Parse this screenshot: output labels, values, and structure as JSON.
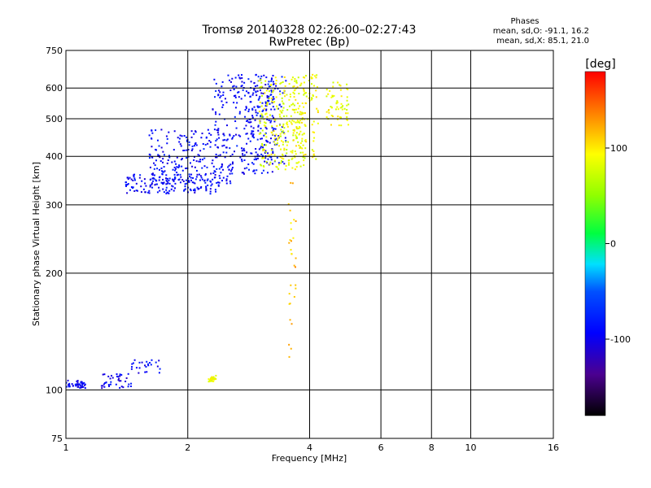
{
  "header": {
    "title_line1": "Tromsø 20140328 02:26:00–02:27:43",
    "title_line2": "RwPretec (Bp)",
    "stats_title": "Phases",
    "stats_o": "mean, sd,O: -91.1, 16.2",
    "stats_x": "mean, sd,X:  85.1, 21.0"
  },
  "colorbar": {
    "unit": "[deg]",
    "ticks": [
      {
        "value": 100,
        "label": "100"
      },
      {
        "value": 0,
        "label": "0"
      },
      {
        "value": -100,
        "label": "-100"
      }
    ],
    "range": [
      -180,
      180
    ]
  },
  "chart_data": {
    "type": "scatter",
    "title": "Tromsø 20140328 02:26:00–02:27:43",
    "subtitle": "RwPretec (Bp)",
    "xlabel": "Frequency [MHz]",
    "ylabel": "Stationary phase Virtual Height [km]",
    "x_scale": "log",
    "y_scale": "log",
    "xlim": [
      1,
      16
    ],
    "ylim": [
      75,
      750
    ],
    "x_ticks": [
      1,
      2,
      4,
      6,
      8,
      10,
      16
    ],
    "y_ticks": [
      75,
      100,
      200,
      300,
      400,
      500,
      600,
      750
    ],
    "x_gridlines": [
      2,
      4,
      6,
      8,
      10
    ],
    "y_gridlines": [
      100,
      200,
      300,
      400,
      500,
      600
    ],
    "color_variable": "phase [deg]",
    "color_range": [
      -180,
      180
    ],
    "clusters": [
      {
        "desc": "E-region trace (O-mode)",
        "x": [
          1.0,
          1.12
        ],
        "y": [
          101,
          106
        ],
        "phase": -95,
        "n": 45
      },
      {
        "desc": "E-region trace (O-mode)",
        "x": [
          1.22,
          1.45
        ],
        "y": [
          101,
          110
        ],
        "phase": -98,
        "n": 40
      },
      {
        "desc": "Es segment",
        "x": [
          1.45,
          1.72
        ],
        "y": [
          110,
          120
        ],
        "phase": -92,
        "n": 25
      },
      {
        "desc": "F-region trace lower branch (O-mode)",
        "x": [
          1.4,
          2.4
        ],
        "y": [
          320,
          360
        ],
        "phase": -92,
        "n": 160
      },
      {
        "desc": "F-region trace (O-mode)",
        "x": [
          1.6,
          2.6
        ],
        "y": [
          340,
          470
        ],
        "phase": -90,
        "n": 220
      },
      {
        "desc": "F-region trace (O-mode)",
        "x": [
          2.3,
          3.3
        ],
        "y": [
          360,
          650
        ],
        "phase": -90,
        "n": 240
      },
      {
        "desc": "F-region trace (O-mode)",
        "x": [
          2.8,
          3.5
        ],
        "y": [
          380,
          650
        ],
        "phase": -88,
        "n": 120
      },
      {
        "desc": "F-region trace (X-mode)",
        "x": [
          3.0,
          3.9
        ],
        "y": [
          370,
          640
        ],
        "phase": 85,
        "n": 260
      },
      {
        "desc": "F-region trace (X-mode)",
        "x": [
          3.6,
          4.2
        ],
        "y": [
          390,
          650
        ],
        "phase": 90,
        "n": 90
      },
      {
        "desc": "F-region trace (X-mode)",
        "x": [
          4.4,
          5.0
        ],
        "y": [
          480,
          620
        ],
        "phase": 88,
        "n": 60
      },
      {
        "desc": "oblique echoes near 3.6 MHz",
        "x": [
          3.55,
          3.7
        ],
        "y": [
          120,
          350
        ],
        "phase": 115,
        "n": 30
      },
      {
        "desc": "Es patch near 2.3 MHz",
        "x": [
          2.25,
          2.35
        ],
        "y": [
          105,
          109
        ],
        "phase": 95,
        "n": 30
      }
    ]
  }
}
